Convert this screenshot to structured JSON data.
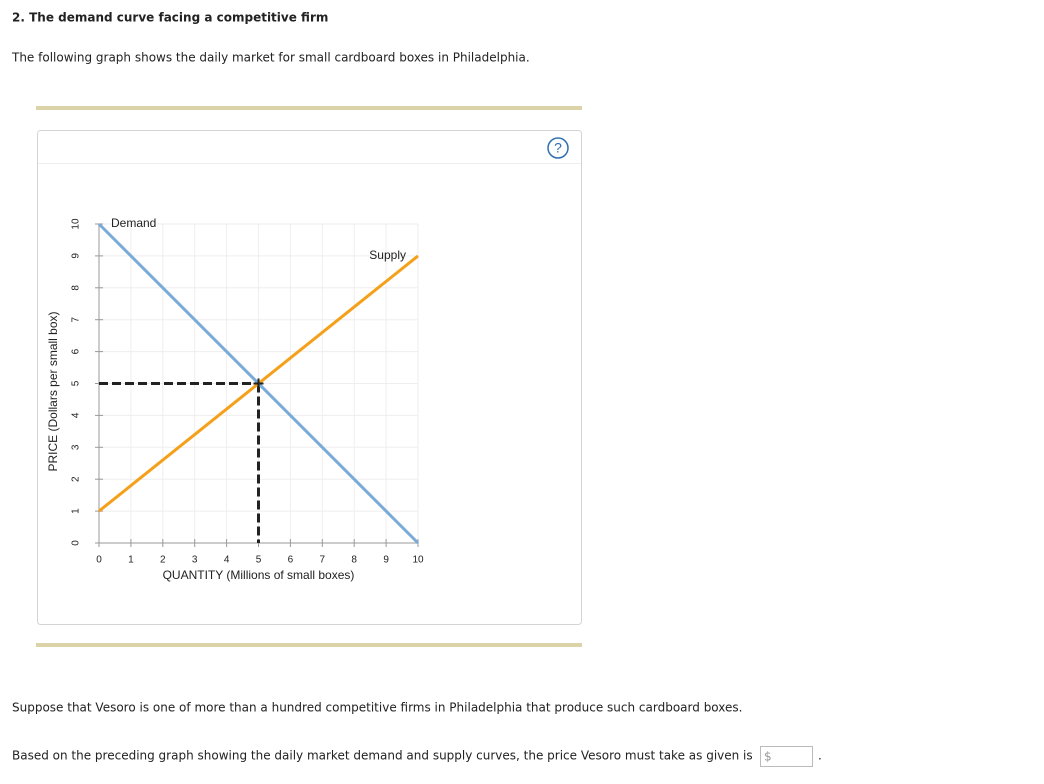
{
  "header": {
    "title": "2. The demand curve facing a competitive firm"
  },
  "intro": "The following graph shows the daily market for small cardboard boxes in Philadelphia.",
  "help_icon": "?",
  "chart_data": {
    "type": "line",
    "x_label": "QUANTITY (Millions of small boxes)",
    "y_label": "PRICE (Dollars per small box)",
    "xlim": [
      0,
      10
    ],
    "ylim": [
      0,
      10
    ],
    "xticks": [
      0,
      1,
      2,
      3,
      4,
      5,
      6,
      7,
      8,
      9,
      10
    ],
    "yticks": [
      0,
      1,
      2,
      3,
      4,
      5,
      6,
      7,
      8,
      9,
      10
    ],
    "grid": true,
    "series": [
      {
        "name": "Demand",
        "color": "#7aaad8",
        "x": [
          0,
          10
        ],
        "values": [
          10,
          0
        ]
      },
      {
        "name": "Supply",
        "color": "#f5a01a",
        "x": [
          0,
          10
        ],
        "values": [
          1,
          9
        ]
      }
    ],
    "equilibrium": {
      "x": 5,
      "y": 5,
      "color": "#222222"
    }
  },
  "question1": "Suppose that Vesoro is one of more than a hundred competitive firms in Philadelphia that produce such cardboard boxes.",
  "question2": {
    "text": "Based on the preceding graph showing the daily market demand and supply curves, the price Vesoro must take as given is",
    "input_prefix": "$",
    "suffix": "."
  }
}
